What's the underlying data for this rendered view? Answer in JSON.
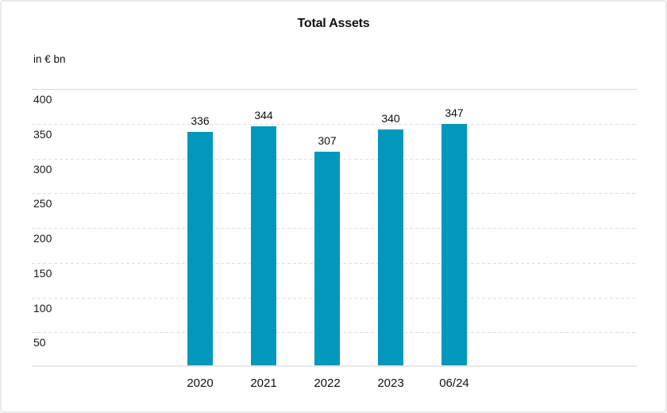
{
  "chart_data": {
    "type": "bar",
    "title": "Total Assets",
    "unit_label": "in € bn",
    "categories": [
      "2020",
      "2021",
      "2022",
      "2023",
      "06/24"
    ],
    "values": [
      336,
      344,
      307,
      340,
      347
    ],
    "xlabel": "",
    "ylabel": "in € bn",
    "ylim": [
      0,
      400
    ],
    "yticks": [
      50,
      100,
      150,
      200,
      250,
      300,
      350,
      400
    ],
    "grid": "horizontal, dashed between ticks, solid at 0 and 400 levels",
    "tick_label_position": "below gridline, left-aligned inside plot",
    "value_labels": "above each bar",
    "legend_position": "none",
    "bar_color": "#0098BC",
    "text_color": "#1a1a1a",
    "grid_dashed_color": "#dedede",
    "grid_solid_color": "#d9d9d9",
    "baseline_color": "#e7e7e7",
    "background_color": "#ffffff",
    "card_border_color": "#e9e9ec"
  }
}
